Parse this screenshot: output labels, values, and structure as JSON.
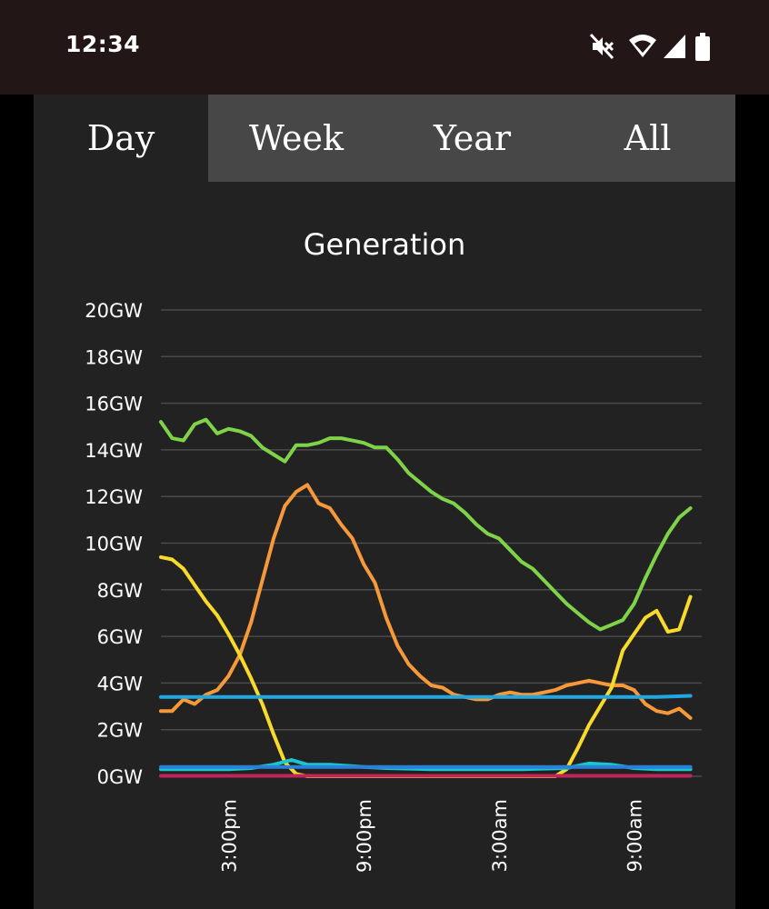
{
  "status_bar": {
    "time": "12:34",
    "icons": [
      "mute-icon",
      "wifi-icon",
      "signal-icon",
      "battery-icon"
    ]
  },
  "tabs": [
    {
      "label": "Day",
      "active": true
    },
    {
      "label": "Week",
      "active": false
    },
    {
      "label": "Year",
      "active": false
    },
    {
      "label": "All",
      "active": false
    }
  ],
  "chart_data": {
    "type": "line",
    "title": "Generation",
    "yticks": [
      "0GW",
      "2GW",
      "4GW",
      "6GW",
      "8GW",
      "10GW",
      "12GW",
      "14GW",
      "16GW",
      "18GW",
      "20GW"
    ],
    "ylim": [
      0,
      20
    ],
    "xlim": [
      12,
      36
    ],
    "xticks": [
      {
        "label": "3:00pm",
        "x": 15
      },
      {
        "label": "9:00pm",
        "x": 21
      },
      {
        "label": "3:00am",
        "x": 27
      },
      {
        "label": "9:00am",
        "x": 33
      }
    ],
    "grid": true,
    "series": [
      {
        "color": "#7ed348",
        "points": [
          [
            12,
            15.2
          ],
          [
            12.5,
            14.5
          ],
          [
            13,
            14.4
          ],
          [
            13.5,
            15.1
          ],
          [
            14,
            15.3
          ],
          [
            14.5,
            14.7
          ],
          [
            15,
            14.9
          ],
          [
            15.5,
            14.8
          ],
          [
            16,
            14.6
          ],
          [
            16.5,
            14.1
          ],
          [
            17,
            13.8
          ],
          [
            17.5,
            13.5
          ],
          [
            18,
            14.2
          ],
          [
            18.5,
            14.2
          ],
          [
            19,
            14.3
          ],
          [
            19.5,
            14.5
          ],
          [
            20,
            14.5
          ],
          [
            20.5,
            14.4
          ],
          [
            21,
            14.3
          ],
          [
            21.5,
            14.1
          ],
          [
            22,
            14.1
          ],
          [
            22.5,
            13.6
          ],
          [
            23,
            13.0
          ],
          [
            23.5,
            12.6
          ],
          [
            24,
            12.2
          ],
          [
            24.5,
            11.9
          ],
          [
            25,
            11.7
          ],
          [
            25.5,
            11.3
          ],
          [
            26,
            10.8
          ],
          [
            26.5,
            10.4
          ],
          [
            27,
            10.2
          ],
          [
            27.5,
            9.7
          ],
          [
            28,
            9.2
          ],
          [
            28.5,
            8.9
          ],
          [
            29,
            8.4
          ],
          [
            29.5,
            7.9
          ],
          [
            30,
            7.4
          ],
          [
            30.5,
            7.0
          ],
          [
            31,
            6.6
          ],
          [
            31.5,
            6.3
          ],
          [
            32,
            6.5
          ],
          [
            32.5,
            6.7
          ],
          [
            33,
            7.4
          ],
          [
            33.5,
            8.5
          ],
          [
            34,
            9.5
          ],
          [
            34.5,
            10.4
          ],
          [
            35,
            11.1
          ],
          [
            35.5,
            11.5
          ]
        ]
      },
      {
        "color": "#f5993b",
        "points": [
          [
            12,
            2.8
          ],
          [
            12.5,
            2.8
          ],
          [
            13,
            3.3
          ],
          [
            13.5,
            3.1
          ],
          [
            14,
            3.5
          ],
          [
            14.5,
            3.7
          ],
          [
            15,
            4.3
          ],
          [
            15.5,
            5.2
          ],
          [
            16,
            6.6
          ],
          [
            16.5,
            8.4
          ],
          [
            17,
            10.2
          ],
          [
            17.5,
            11.6
          ],
          [
            18,
            12.2
          ],
          [
            18.5,
            12.5
          ],
          [
            19,
            11.7
          ],
          [
            19.5,
            11.5
          ],
          [
            20,
            10.8
          ],
          [
            20.5,
            10.2
          ],
          [
            21,
            9.1
          ],
          [
            21.5,
            8.3
          ],
          [
            22,
            6.8
          ],
          [
            22.5,
            5.6
          ],
          [
            23,
            4.8
          ],
          [
            23.5,
            4.3
          ],
          [
            24,
            3.9
          ],
          [
            24.5,
            3.8
          ],
          [
            25,
            3.5
          ],
          [
            25.5,
            3.4
          ],
          [
            26,
            3.3
          ],
          [
            26.5,
            3.3
          ],
          [
            27,
            3.5
          ],
          [
            27.5,
            3.6
          ],
          [
            28,
            3.5
          ],
          [
            28.5,
            3.5
          ],
          [
            29,
            3.6
          ],
          [
            29.5,
            3.7
          ],
          [
            30,
            3.9
          ],
          [
            30.5,
            4.0
          ],
          [
            31,
            4.1
          ],
          [
            31.5,
            4.0
          ],
          [
            32,
            3.9
          ],
          [
            32.5,
            3.9
          ],
          [
            33,
            3.7
          ],
          [
            33.5,
            3.1
          ],
          [
            34,
            2.8
          ],
          [
            34.5,
            2.7
          ],
          [
            35,
            2.9
          ],
          [
            35.5,
            2.5
          ]
        ]
      },
      {
        "color": "#f7da2b",
        "points": [
          [
            12,
            9.4
          ],
          [
            12.5,
            9.3
          ],
          [
            13,
            8.9
          ],
          [
            13.5,
            8.2
          ],
          [
            14,
            7.5
          ],
          [
            14.5,
            6.9
          ],
          [
            15,
            6.1
          ],
          [
            15.5,
            5.2
          ],
          [
            16,
            4.2
          ],
          [
            16.5,
            3.1
          ],
          [
            17,
            1.8
          ],
          [
            17.5,
            0.6
          ],
          [
            18,
            0.1
          ],
          [
            18.5,
            0.0
          ],
          [
            19,
            0.0
          ],
          [
            19.5,
            0.0
          ],
          [
            20,
            0.0
          ],
          [
            20.5,
            0.0
          ],
          [
            21,
            0.0
          ],
          [
            21.5,
            0.0
          ],
          [
            22,
            0.0
          ],
          [
            22.5,
            0.0
          ],
          [
            23,
            0.0
          ],
          [
            23.5,
            0.0
          ],
          [
            24,
            0.0
          ],
          [
            24.5,
            0.0
          ],
          [
            25,
            0.0
          ],
          [
            25.5,
            0.0
          ],
          [
            26,
            0.0
          ],
          [
            26.5,
            0.0
          ],
          [
            27,
            0.0
          ],
          [
            27.5,
            0.0
          ],
          [
            28,
            0.0
          ],
          [
            28.5,
            0.0
          ],
          [
            29,
            0.0
          ],
          [
            29.5,
            0.0
          ],
          [
            30,
            0.3
          ],
          [
            30.5,
            1.2
          ],
          [
            31,
            2.2
          ],
          [
            31.5,
            3.0
          ],
          [
            32,
            3.8
          ],
          [
            32.5,
            5.4
          ],
          [
            33,
            6.1
          ],
          [
            33.5,
            6.8
          ],
          [
            34,
            7.1
          ],
          [
            34.5,
            6.2
          ],
          [
            35,
            6.3
          ],
          [
            35.5,
            7.7
          ]
        ]
      },
      {
        "color": "#20a7e3",
        "points": [
          [
            12,
            3.4
          ],
          [
            14,
            3.4
          ],
          [
            16,
            3.4
          ],
          [
            18,
            3.4
          ],
          [
            20,
            3.4
          ],
          [
            22,
            3.4
          ],
          [
            24,
            3.4
          ],
          [
            26,
            3.4
          ],
          [
            28,
            3.4
          ],
          [
            30,
            3.4
          ],
          [
            32,
            3.4
          ],
          [
            34,
            3.4
          ],
          [
            35.5,
            3.45
          ]
        ]
      },
      {
        "color": "#1cc6cf",
        "points": [
          [
            12,
            0.3
          ],
          [
            13,
            0.3
          ],
          [
            14,
            0.3
          ],
          [
            15,
            0.3
          ],
          [
            16,
            0.35
          ],
          [
            17,
            0.5
          ],
          [
            17.8,
            0.7
          ],
          [
            18.5,
            0.5
          ],
          [
            19.5,
            0.5
          ],
          [
            21,
            0.4
          ],
          [
            22,
            0.35
          ],
          [
            24,
            0.3
          ],
          [
            26,
            0.3
          ],
          [
            28,
            0.3
          ],
          [
            30,
            0.35
          ],
          [
            31,
            0.55
          ],
          [
            32,
            0.5
          ],
          [
            33,
            0.35
          ],
          [
            34,
            0.3
          ],
          [
            35.5,
            0.3
          ]
        ]
      },
      {
        "color": "#2a7fd6",
        "points": [
          [
            12,
            0.4
          ],
          [
            14,
            0.4
          ],
          [
            16,
            0.4
          ],
          [
            18,
            0.4
          ],
          [
            20,
            0.4
          ],
          [
            22,
            0.4
          ],
          [
            24,
            0.4
          ],
          [
            26,
            0.4
          ],
          [
            28,
            0.4
          ],
          [
            30,
            0.4
          ],
          [
            32,
            0.4
          ],
          [
            34,
            0.4
          ],
          [
            35.5,
            0.4
          ]
        ]
      },
      {
        "color": "#c0245c",
        "points": [
          [
            12,
            0.02
          ],
          [
            16,
            0.02
          ],
          [
            20,
            0.02
          ],
          [
            24,
            0.02
          ],
          [
            28,
            0.02
          ],
          [
            32,
            0.02
          ],
          [
            35.5,
            0.02
          ]
        ]
      }
    ]
  }
}
